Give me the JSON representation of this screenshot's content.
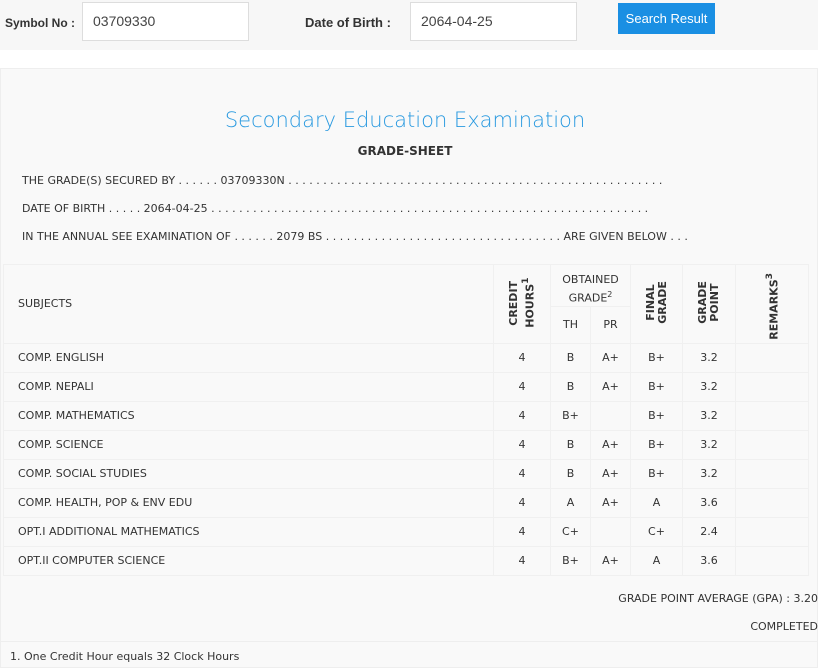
{
  "search": {
    "symbol_label": "Symbol No :",
    "symbol_value": "03709330",
    "dob_label": "Date of Birth :",
    "dob_value": "2064-04-25",
    "button": "Search Result"
  },
  "sheet": {
    "title": "Secondary Education Examination",
    "subtitle": "GRADE-SHEET",
    "line1": "THE GRADE(S) SECURED BY . . . . . . 03709330N . . . . . . . . . . . . . . . . . . . . . . . . . . . . . . . . . . . . . . . . . . . . . . . . . . . . . .",
    "line2": "DATE OF BIRTH . . . . . 2064-04-25 . . . . . . . . . . . . . . . . . . . . . . . . . . . . . . . . . . . . . . . . . . . . . . . . . . . . . . . . . . . . . . .",
    "line3": "IN THE ANNUAL SEE EXAMINATION OF . . . . . . 2079 BS . . . . . . . . . . . . . . . . . . . . . . . . . . . . . . . . . . ARE GIVEN BELOW . . .",
    "headers": {
      "subjects": "SUBJECTS",
      "credit": "CREDIT HOURS",
      "credit_sup": "1",
      "obtained": "OBTAINED GRADE",
      "obtained_sup": "2",
      "th": "TH",
      "pr": "PR",
      "final": "FINAL GRADE",
      "gp": "GRADE POINT",
      "remarks": "REMARKS",
      "remarks_sup": "3"
    },
    "rows": [
      {
        "subject": "COMP. ENGLISH",
        "credit": "4",
        "th": "B",
        "pr": "A+",
        "final": "B+",
        "gp": "3.2",
        "remarks": ""
      },
      {
        "subject": "COMP. NEPALI",
        "credit": "4",
        "th": "B",
        "pr": "A+",
        "final": "B+",
        "gp": "3.2",
        "remarks": ""
      },
      {
        "subject": "COMP. MATHEMATICS",
        "credit": "4",
        "th": "B+",
        "pr": "",
        "final": "B+",
        "gp": "3.2",
        "remarks": ""
      },
      {
        "subject": "COMP. SCIENCE",
        "credit": "4",
        "th": "B",
        "pr": "A+",
        "final": "B+",
        "gp": "3.2",
        "remarks": ""
      },
      {
        "subject": "COMP. SOCIAL STUDIES",
        "credit": "4",
        "th": "B",
        "pr": "A+",
        "final": "B+",
        "gp": "3.2",
        "remarks": ""
      },
      {
        "subject": "COMP. HEALTH, POP & ENV EDU",
        "credit": "4",
        "th": "A",
        "pr": "A+",
        "final": "A",
        "gp": "3.6",
        "remarks": ""
      },
      {
        "subject": "OPT.I ADDITIONAL MATHEMATICS",
        "credit": "4",
        "th": "C+",
        "pr": "",
        "final": "C+",
        "gp": "2.4",
        "remarks": ""
      },
      {
        "subject": "OPT.II COMPUTER SCIENCE",
        "credit": "4",
        "th": "B+",
        "pr": "A+",
        "final": "A",
        "gp": "3.6",
        "remarks": ""
      }
    ],
    "gpa": "GRADE POINT AVERAGE (GPA) : 3.20",
    "status": "COMPLETED",
    "footnote": "1. One Credit Hour equals 32 Clock Hours"
  }
}
